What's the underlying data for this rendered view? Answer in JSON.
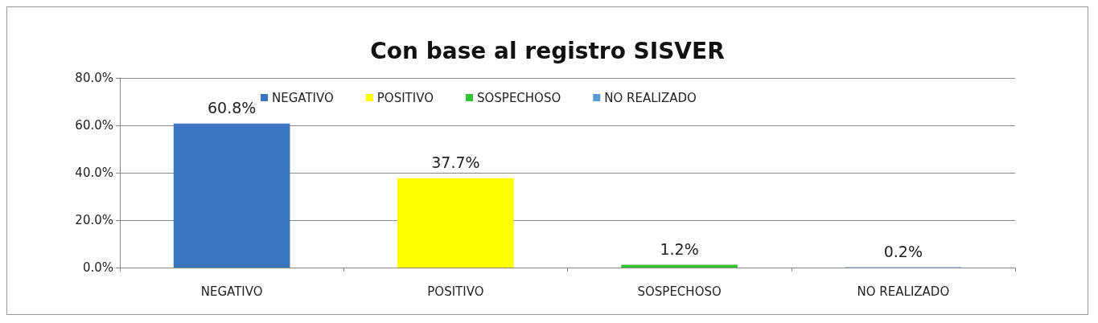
{
  "chart_data": {
    "type": "bar",
    "title": "Con base al registro SISVER",
    "categories": [
      "NEGATIVO",
      "POSITIVO",
      "SOSPECHOSO",
      "NO REALIZADO"
    ],
    "stacked": true,
    "series": [
      {
        "name": "NEGATIVO",
        "color": "#3b74c0",
        "values": [
          60.8,
          null,
          null,
          null
        ],
        "value_labels": [
          "60.8%",
          null,
          null,
          null
        ]
      },
      {
        "name": "POSITIVO",
        "color": "#ffff00",
        "values": [
          null,
          37.7,
          null,
          null
        ],
        "value_labels": [
          null,
          "37.7%",
          null,
          null
        ]
      },
      {
        "name": "SOSPECHOSO",
        "color": "#33c433",
        "values": [
          null,
          null,
          1.2,
          null
        ],
        "value_labels": [
          null,
          null,
          "1.2%",
          null
        ]
      },
      {
        "name": "NO REALIZADO",
        "color": "#5b9bd5",
        "values": [
          null,
          null,
          null,
          0.2
        ],
        "value_labels": [
          null,
          null,
          null,
          "0.2%"
        ]
      }
    ],
    "ylim": [
      0,
      80
    ],
    "yticks": [
      {
        "value": 0,
        "label": "0.0%"
      },
      {
        "value": 20,
        "label": "20.0%"
      },
      {
        "value": 40,
        "label": "40.0%"
      },
      {
        "value": 60,
        "label": "60.0%"
      },
      {
        "value": 80,
        "label": "80.0%"
      }
    ],
    "grid": "y",
    "legend": "top"
  }
}
